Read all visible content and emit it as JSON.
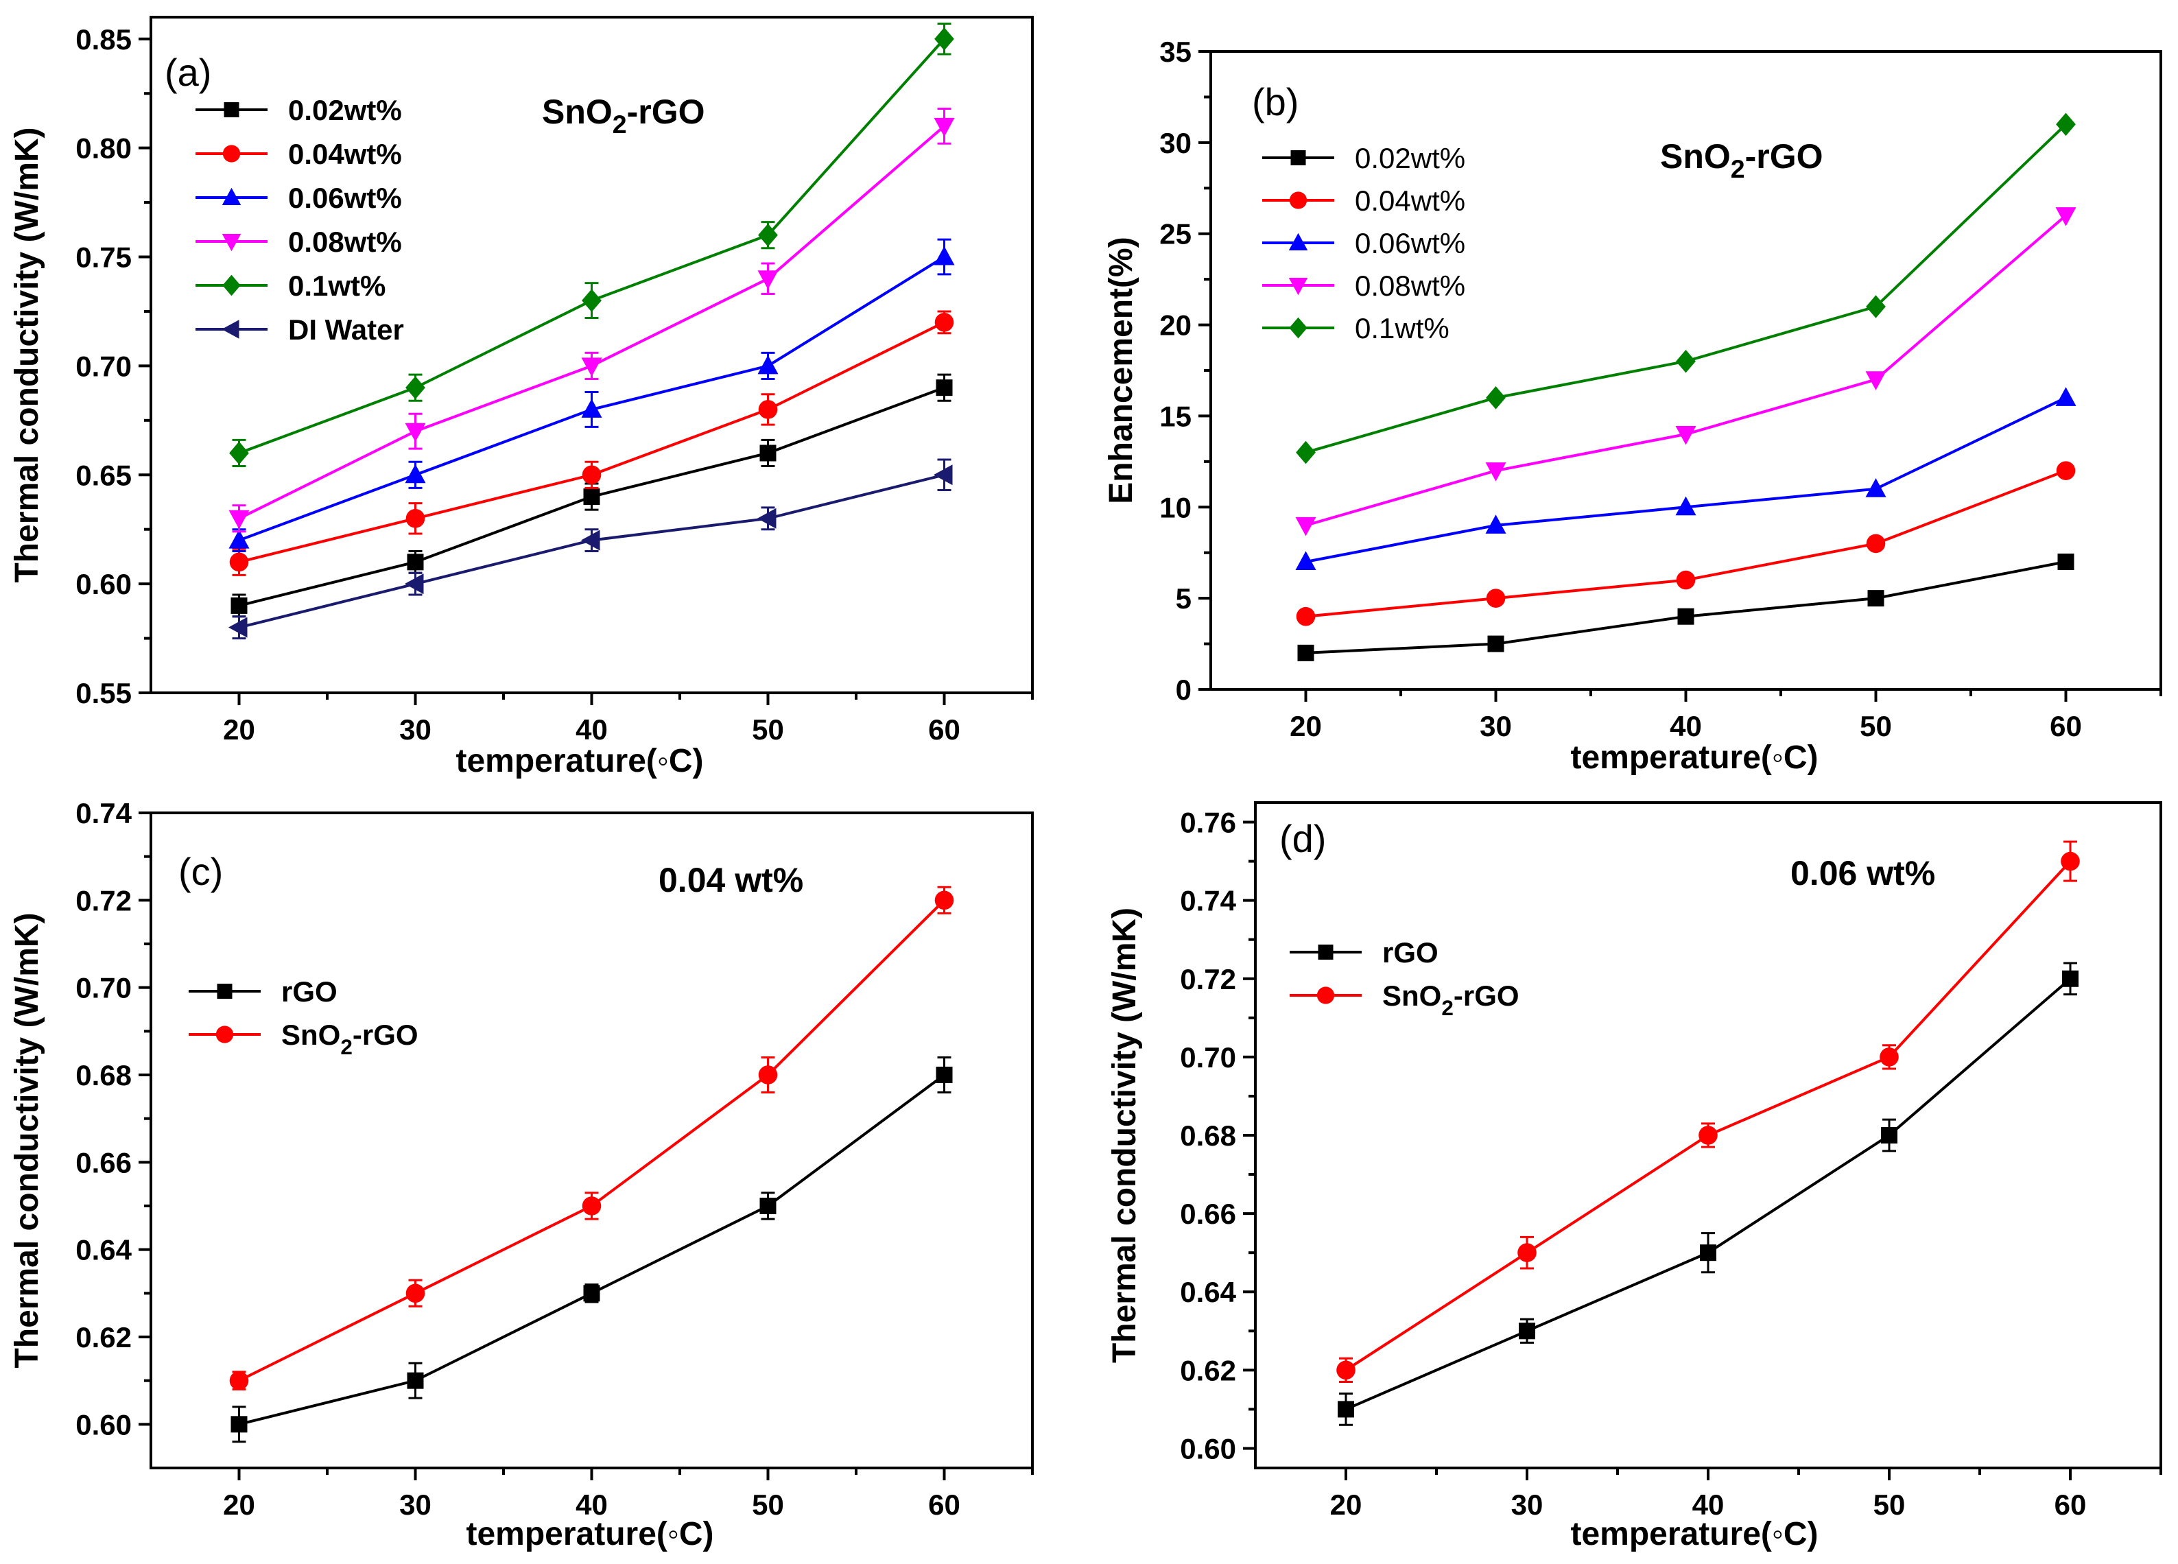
{
  "chart_data": [
    {
      "type": "line",
      "panel_label": "(a)",
      "title": "SnO₂-rGO",
      "title_parts": [
        "SnO",
        "2",
        "-rGO"
      ],
      "xlabel": "temperature(◦C)",
      "ylabel": "Thermal conductivity (W/mK)",
      "x": [
        20,
        30,
        40,
        50,
        60
      ],
      "xlim": [
        15,
        65
      ],
      "ylim": [
        0.55,
        0.86
      ],
      "xticks": [
        20,
        30,
        40,
        50,
        60
      ],
      "yticks": [
        0.55,
        0.6,
        0.65,
        0.7,
        0.75,
        0.8,
        0.85
      ],
      "ytick_labels": [
        "0.55",
        "0.60",
        "0.65",
        "0.70",
        "0.75",
        "0.80",
        "0.85"
      ],
      "legend_position": "top-left",
      "legend_bold": true,
      "series": [
        {
          "name": "0.02wt%",
          "values": [
            0.59,
            0.61,
            0.64,
            0.66,
            0.69
          ],
          "err": [
            0.005,
            0.005,
            0.006,
            0.006,
            0.006
          ],
          "color": "#000000",
          "marker": "square"
        },
        {
          "name": "0.04wt%",
          "values": [
            0.61,
            0.63,
            0.65,
            0.68,
            0.72
          ],
          "err": [
            0.006,
            0.007,
            0.006,
            0.007,
            0.005
          ],
          "color": "#ff0000",
          "marker": "circle"
        },
        {
          "name": "0.06wt%",
          "values": [
            0.62,
            0.65,
            0.68,
            0.7,
            0.75
          ],
          "err": [
            0.005,
            0.006,
            0.008,
            0.006,
            0.008
          ],
          "color": "#0000ff",
          "marker": "triangle-up"
        },
        {
          "name": "0.08wt%",
          "values": [
            0.63,
            0.67,
            0.7,
            0.74,
            0.81
          ],
          "err": [
            0.006,
            0.008,
            0.006,
            0.007,
            0.008
          ],
          "color": "#ff00ff",
          "marker": "triangle-down"
        },
        {
          "name": "0.1wt%",
          "values": [
            0.66,
            0.69,
            0.73,
            0.76,
            0.85
          ],
          "err": [
            0.006,
            0.006,
            0.008,
            0.006,
            0.007
          ],
          "color": "#008000",
          "marker": "diamond"
        },
        {
          "name": "DI Water",
          "values": [
            0.58,
            0.6,
            0.62,
            0.63,
            0.65
          ],
          "err": [
            0.005,
            0.005,
            0.005,
            0.005,
            0.007
          ],
          "color": "#1a1a6e",
          "marker": "triangle-left"
        }
      ]
    },
    {
      "type": "line",
      "panel_label": "(b)",
      "title": "SnO₂-rGO",
      "title_parts": [
        "SnO",
        "2",
        "-rGO"
      ],
      "xlabel": "temperature(◦C)",
      "ylabel": "Enhancement(%)",
      "x": [
        20,
        30,
        40,
        50,
        60
      ],
      "xlim": [
        15,
        65
      ],
      "ylim": [
        0,
        35
      ],
      "xticks": [
        20,
        30,
        40,
        50,
        60
      ],
      "yticks": [
        0,
        5,
        10,
        15,
        20,
        25,
        30,
        35
      ],
      "ytick_labels": [
        "0",
        "5",
        "10",
        "15",
        "20",
        "25",
        "30",
        "35"
      ],
      "legend_position": "top-left",
      "legend_bold": false,
      "series": [
        {
          "name": "0.02wt%",
          "values": [
            2,
            2.5,
            4,
            5,
            7
          ],
          "color": "#000000",
          "marker": "square"
        },
        {
          "name": "0.04wt%",
          "values": [
            4,
            5,
            6,
            8,
            12
          ],
          "color": "#ff0000",
          "marker": "circle"
        },
        {
          "name": "0.06wt%",
          "values": [
            7,
            9,
            10,
            11,
            16
          ],
          "color": "#0000ff",
          "marker": "triangle-up"
        },
        {
          "name": "0.08wt%",
          "values": [
            9,
            12,
            14,
            17,
            26
          ],
          "color": "#ff00ff",
          "marker": "triangle-down"
        },
        {
          "name": "0.1wt%",
          "values": [
            13,
            16,
            18,
            21,
            31
          ],
          "color": "#008000",
          "marker": "diamond"
        }
      ]
    },
    {
      "type": "line",
      "panel_label": "(c)",
      "title": "0.04 wt%",
      "xlabel": "temperature(◦C)",
      "ylabel": "Thermal conductivity (W/mK)",
      "x": [
        20,
        30,
        40,
        50,
        60
      ],
      "xlim": [
        15,
        65
      ],
      "ylim": [
        0.59,
        0.74
      ],
      "xticks": [
        20,
        30,
        40,
        50,
        60
      ],
      "yticks": [
        0.6,
        0.62,
        0.64,
        0.66,
        0.68,
        0.7,
        0.72,
        0.74
      ],
      "ytick_labels": [
        "0.60",
        "0.62",
        "0.64",
        "0.66",
        "0.68",
        "0.70",
        "0.72",
        "0.74"
      ],
      "legend_position": "center-left",
      "legend_bold": true,
      "series": [
        {
          "name": "rGO",
          "values": [
            0.6,
            0.61,
            0.63,
            0.65,
            0.68
          ],
          "err": [
            0.004,
            0.004,
            0.002,
            0.003,
            0.004
          ],
          "color": "#000000",
          "marker": "square"
        },
        {
          "name": "SnO₂-rGO",
          "name_parts": [
            "SnO",
            "2",
            "-rGO"
          ],
          "values": [
            0.61,
            0.63,
            0.65,
            0.68,
            0.72
          ],
          "err": [
            0.002,
            0.003,
            0.003,
            0.004,
            0.003
          ],
          "color": "#ff0000",
          "marker": "circle"
        }
      ]
    },
    {
      "type": "line",
      "panel_label": "(d)",
      "title": "0.06 wt%",
      "xlabel": "temperature(◦C)",
      "ylabel": "Thermal conductivity (W/mK)",
      "x": [
        20,
        30,
        40,
        50,
        60
      ],
      "xlim": [
        15,
        65
      ],
      "ylim": [
        0.595,
        0.765
      ],
      "xticks": [
        20,
        30,
        40,
        50,
        60
      ],
      "yticks": [
        0.6,
        0.62,
        0.64,
        0.66,
        0.68,
        0.7,
        0.72,
        0.74,
        0.76
      ],
      "ytick_labels": [
        "0.60",
        "0.62",
        "0.64",
        "0.66",
        "0.68",
        "0.70",
        "0.72",
        "0.74",
        "0.76"
      ],
      "legend_position": "upper-left",
      "legend_bold": true,
      "series": [
        {
          "name": "rGO",
          "values": [
            0.61,
            0.63,
            0.65,
            0.68,
            0.72
          ],
          "err": [
            0.004,
            0.003,
            0.005,
            0.004,
            0.004
          ],
          "color": "#000000",
          "marker": "square"
        },
        {
          "name": "SnO₂-rGO",
          "name_parts": [
            "SnO",
            "2",
            "-rGO"
          ],
          "values": [
            0.62,
            0.65,
            0.68,
            0.7,
            0.75
          ],
          "err": [
            0.003,
            0.004,
            0.003,
            0.003,
            0.005
          ],
          "color": "#ff0000",
          "marker": "circle"
        }
      ]
    }
  ]
}
